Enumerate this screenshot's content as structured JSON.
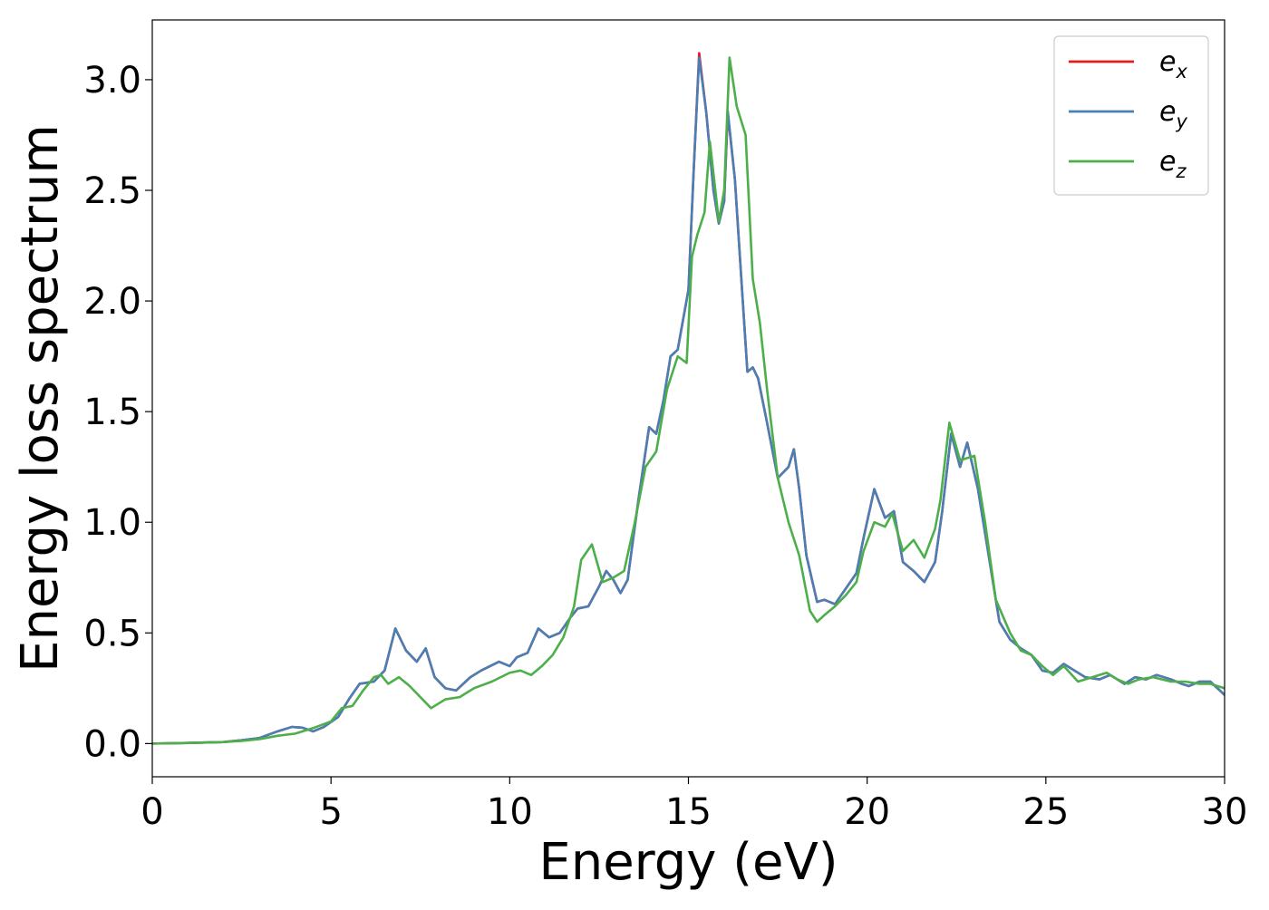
{
  "chart_data": {
    "type": "line",
    "title": "",
    "xlabel": "Energy (eV)",
    "ylabel": "Energy loss spectrum",
    "xlim": [
      0,
      30
    ],
    "ylim": [
      -0.15,
      3.27
    ],
    "xticks": [
      0,
      5,
      10,
      15,
      20,
      25,
      30
    ],
    "xtick_labels": [
      "0",
      "5",
      "10",
      "15",
      "20",
      "25",
      "30"
    ],
    "yticks": [
      0.0,
      0.5,
      1.0,
      1.5,
      2.0,
      2.5,
      3.0
    ],
    "ytick_labels": [
      "0.0",
      "0.5",
      "1.0",
      "1.5",
      "2.0",
      "2.5",
      "3.0"
    ],
    "grid": false,
    "legend_position": "top-right",
    "series": [
      {
        "name": "e_x",
        "legend_base": "e",
        "legend_sub": "x",
        "color": "#e41a1c",
        "points": [
          [
            0,
            0
          ],
          [
            1,
            0.003
          ],
          [
            2,
            0.007
          ],
          [
            2.5,
            0.015
          ],
          [
            3,
            0.025
          ],
          [
            3.5,
            0.055
          ],
          [
            3.9,
            0.075
          ],
          [
            4.2,
            0.072
          ],
          [
            4.5,
            0.055
          ],
          [
            4.8,
            0.075
          ],
          [
            5.2,
            0.12
          ],
          [
            5.5,
            0.2
          ],
          [
            5.8,
            0.27
          ],
          [
            6.2,
            0.28
          ],
          [
            6.5,
            0.33
          ],
          [
            6.8,
            0.52
          ],
          [
            7.1,
            0.42
          ],
          [
            7.4,
            0.37
          ],
          [
            7.65,
            0.43
          ],
          [
            7.9,
            0.3
          ],
          [
            8.2,
            0.25
          ],
          [
            8.5,
            0.24
          ],
          [
            8.9,
            0.3
          ],
          [
            9.2,
            0.33
          ],
          [
            9.7,
            0.37
          ],
          [
            10,
            0.35
          ],
          [
            10.2,
            0.39
          ],
          [
            10.5,
            0.41
          ],
          [
            10.8,
            0.52
          ],
          [
            11.1,
            0.48
          ],
          [
            11.4,
            0.5
          ],
          [
            11.7,
            0.57
          ],
          [
            11.9,
            0.61
          ],
          [
            12.2,
            0.62
          ],
          [
            12.5,
            0.71
          ],
          [
            12.7,
            0.78
          ],
          [
            12.9,
            0.74
          ],
          [
            13.1,
            0.68
          ],
          [
            13.3,
            0.74
          ],
          [
            13.6,
            1.1
          ],
          [
            13.9,
            1.43
          ],
          [
            14.1,
            1.4
          ],
          [
            14.3,
            1.55
          ],
          [
            14.5,
            1.75
          ],
          [
            14.7,
            1.78
          ],
          [
            15.0,
            2.05
          ],
          [
            15.15,
            2.6
          ],
          [
            15.3,
            3.12
          ],
          [
            15.5,
            2.85
          ],
          [
            15.7,
            2.5
          ],
          [
            15.85,
            2.35
          ],
          [
            16.0,
            2.45
          ],
          [
            16.1,
            2.85
          ],
          [
            16.3,
            2.55
          ],
          [
            16.5,
            2.05
          ],
          [
            16.65,
            1.68
          ],
          [
            16.8,
            1.7
          ],
          [
            16.95,
            1.65
          ],
          [
            17.2,
            1.45
          ],
          [
            17.5,
            1.2
          ],
          [
            17.8,
            1.25
          ],
          [
            17.95,
            1.33
          ],
          [
            18.1,
            1.15
          ],
          [
            18.3,
            0.85
          ],
          [
            18.6,
            0.64
          ],
          [
            18.8,
            0.65
          ],
          [
            19.1,
            0.63
          ],
          [
            19.4,
            0.7
          ],
          [
            19.7,
            0.77
          ],
          [
            19.9,
            0.93
          ],
          [
            20.2,
            1.15
          ],
          [
            20.5,
            1.02
          ],
          [
            20.75,
            1.05
          ],
          [
            21.0,
            0.82
          ],
          [
            21.3,
            0.78
          ],
          [
            21.6,
            0.73
          ],
          [
            21.9,
            0.82
          ],
          [
            22.1,
            1.05
          ],
          [
            22.35,
            1.4
          ],
          [
            22.6,
            1.25
          ],
          [
            22.8,
            1.36
          ],
          [
            23.1,
            1.15
          ],
          [
            23.4,
            0.85
          ],
          [
            23.7,
            0.55
          ],
          [
            24.0,
            0.47
          ],
          [
            24.3,
            0.43
          ],
          [
            24.6,
            0.4
          ],
          [
            24.9,
            0.33
          ],
          [
            25.2,
            0.32
          ],
          [
            25.5,
            0.36
          ],
          [
            25.8,
            0.33
          ],
          [
            26.1,
            0.3
          ],
          [
            26.5,
            0.29
          ],
          [
            26.8,
            0.31
          ],
          [
            27.2,
            0.27
          ],
          [
            27.5,
            0.3
          ],
          [
            27.8,
            0.29
          ],
          [
            28.1,
            0.31
          ],
          [
            28.5,
            0.29
          ],
          [
            28.8,
            0.27
          ],
          [
            29.0,
            0.26
          ],
          [
            29.3,
            0.28
          ],
          [
            29.6,
            0.28
          ],
          [
            30,
            0.22
          ]
        ]
      },
      {
        "name": "e_y",
        "legend_base": "e",
        "legend_sub": "y",
        "color": "#4a7fb5",
        "points": [
          [
            0,
            0
          ],
          [
            1,
            0.003
          ],
          [
            2,
            0.007
          ],
          [
            2.5,
            0.015
          ],
          [
            3,
            0.025
          ],
          [
            3.5,
            0.055
          ],
          [
            3.9,
            0.075
          ],
          [
            4.2,
            0.072
          ],
          [
            4.5,
            0.055
          ],
          [
            4.8,
            0.075
          ],
          [
            5.2,
            0.12
          ],
          [
            5.5,
            0.2
          ],
          [
            5.8,
            0.27
          ],
          [
            6.2,
            0.28
          ],
          [
            6.5,
            0.33
          ],
          [
            6.8,
            0.52
          ],
          [
            7.1,
            0.42
          ],
          [
            7.4,
            0.37
          ],
          [
            7.65,
            0.43
          ],
          [
            7.9,
            0.3
          ],
          [
            8.2,
            0.25
          ],
          [
            8.5,
            0.24
          ],
          [
            8.9,
            0.3
          ],
          [
            9.2,
            0.33
          ],
          [
            9.7,
            0.37
          ],
          [
            10,
            0.35
          ],
          [
            10.2,
            0.39
          ],
          [
            10.5,
            0.41
          ],
          [
            10.8,
            0.52
          ],
          [
            11.1,
            0.48
          ],
          [
            11.4,
            0.5
          ],
          [
            11.7,
            0.57
          ],
          [
            11.9,
            0.61
          ],
          [
            12.2,
            0.62
          ],
          [
            12.5,
            0.71
          ],
          [
            12.7,
            0.78
          ],
          [
            12.9,
            0.74
          ],
          [
            13.1,
            0.68
          ],
          [
            13.3,
            0.74
          ],
          [
            13.6,
            1.1
          ],
          [
            13.9,
            1.43
          ],
          [
            14.1,
            1.4
          ],
          [
            14.3,
            1.55
          ],
          [
            14.5,
            1.75
          ],
          [
            14.7,
            1.78
          ],
          [
            15.0,
            2.05
          ],
          [
            15.15,
            2.6
          ],
          [
            15.3,
            3.1
          ],
          [
            15.5,
            2.85
          ],
          [
            15.7,
            2.5
          ],
          [
            15.85,
            2.35
          ],
          [
            16.0,
            2.45
          ],
          [
            16.1,
            2.86
          ],
          [
            16.3,
            2.55
          ],
          [
            16.5,
            2.05
          ],
          [
            16.65,
            1.68
          ],
          [
            16.8,
            1.7
          ],
          [
            16.95,
            1.65
          ],
          [
            17.2,
            1.45
          ],
          [
            17.5,
            1.2
          ],
          [
            17.8,
            1.25
          ],
          [
            17.95,
            1.33
          ],
          [
            18.1,
            1.15
          ],
          [
            18.3,
            0.85
          ],
          [
            18.6,
            0.64
          ],
          [
            18.8,
            0.65
          ],
          [
            19.1,
            0.63
          ],
          [
            19.4,
            0.7
          ],
          [
            19.7,
            0.77
          ],
          [
            19.9,
            0.93
          ],
          [
            20.2,
            1.15
          ],
          [
            20.5,
            1.02
          ],
          [
            20.75,
            1.05
          ],
          [
            21.0,
            0.82
          ],
          [
            21.3,
            0.78
          ],
          [
            21.6,
            0.73
          ],
          [
            21.9,
            0.82
          ],
          [
            22.1,
            1.05
          ],
          [
            22.35,
            1.4
          ],
          [
            22.6,
            1.25
          ],
          [
            22.8,
            1.36
          ],
          [
            23.1,
            1.15
          ],
          [
            23.4,
            0.85
          ],
          [
            23.7,
            0.55
          ],
          [
            24.0,
            0.47
          ],
          [
            24.3,
            0.43
          ],
          [
            24.6,
            0.4
          ],
          [
            24.9,
            0.33
          ],
          [
            25.2,
            0.32
          ],
          [
            25.5,
            0.36
          ],
          [
            25.8,
            0.33
          ],
          [
            26.1,
            0.3
          ],
          [
            26.5,
            0.29
          ],
          [
            26.8,
            0.31
          ],
          [
            27.2,
            0.27
          ],
          [
            27.5,
            0.3
          ],
          [
            27.8,
            0.29
          ],
          [
            28.1,
            0.31
          ],
          [
            28.5,
            0.29
          ],
          [
            28.8,
            0.27
          ],
          [
            29.0,
            0.26
          ],
          [
            29.3,
            0.28
          ],
          [
            29.6,
            0.28
          ],
          [
            30,
            0.22
          ]
        ]
      },
      {
        "name": "e_z",
        "legend_base": "e",
        "legend_sub": "z",
        "color": "#4daf4a",
        "points": [
          [
            0,
            0
          ],
          [
            1,
            0.003
          ],
          [
            2,
            0.007
          ],
          [
            2.5,
            0.012
          ],
          [
            3,
            0.02
          ],
          [
            3.5,
            0.035
          ],
          [
            4,
            0.045
          ],
          [
            4.5,
            0.07
          ],
          [
            5,
            0.1
          ],
          [
            5.3,
            0.16
          ],
          [
            5.6,
            0.17
          ],
          [
            5.9,
            0.24
          ],
          [
            6.2,
            0.3
          ],
          [
            6.4,
            0.31
          ],
          [
            6.6,
            0.27
          ],
          [
            6.9,
            0.3
          ],
          [
            7.2,
            0.26
          ],
          [
            7.5,
            0.21
          ],
          [
            7.8,
            0.16
          ],
          [
            8.2,
            0.2
          ],
          [
            8.6,
            0.21
          ],
          [
            9,
            0.25
          ],
          [
            9.5,
            0.28
          ],
          [
            10,
            0.32
          ],
          [
            10.3,
            0.33
          ],
          [
            10.6,
            0.31
          ],
          [
            10.9,
            0.35
          ],
          [
            11.2,
            0.4
          ],
          [
            11.5,
            0.48
          ],
          [
            11.8,
            0.62
          ],
          [
            12.0,
            0.83
          ],
          [
            12.3,
            0.9
          ],
          [
            12.6,
            0.73
          ],
          [
            12.9,
            0.75
          ],
          [
            13.2,
            0.78
          ],
          [
            13.5,
            1.0
          ],
          [
            13.8,
            1.25
          ],
          [
            14.1,
            1.32
          ],
          [
            14.4,
            1.6
          ],
          [
            14.7,
            1.75
          ],
          [
            14.95,
            1.72
          ],
          [
            15.1,
            2.2
          ],
          [
            15.25,
            2.3
          ],
          [
            15.45,
            2.4
          ],
          [
            15.6,
            2.72
          ],
          [
            15.85,
            2.36
          ],
          [
            16.0,
            2.5
          ],
          [
            16.15,
            3.1
          ],
          [
            16.35,
            2.88
          ],
          [
            16.6,
            2.75
          ],
          [
            16.8,
            2.1
          ],
          [
            17.0,
            1.9
          ],
          [
            17.2,
            1.6
          ],
          [
            17.5,
            1.2
          ],
          [
            17.8,
            1.0
          ],
          [
            18.1,
            0.85
          ],
          [
            18.4,
            0.6
          ],
          [
            18.6,
            0.55
          ],
          [
            18.8,
            0.58
          ],
          [
            19.1,
            0.62
          ],
          [
            19.4,
            0.67
          ],
          [
            19.7,
            0.73
          ],
          [
            19.9,
            0.87
          ],
          [
            20.2,
            1.0
          ],
          [
            20.5,
            0.98
          ],
          [
            20.7,
            1.04
          ],
          [
            21.0,
            0.87
          ],
          [
            21.3,
            0.92
          ],
          [
            21.6,
            0.84
          ],
          [
            21.9,
            0.97
          ],
          [
            22.05,
            1.1
          ],
          [
            22.3,
            1.45
          ],
          [
            22.6,
            1.28
          ],
          [
            22.8,
            1.29
          ],
          [
            23.0,
            1.3
          ],
          [
            23.3,
            1.0
          ],
          [
            23.6,
            0.65
          ],
          [
            24.0,
            0.5
          ],
          [
            24.3,
            0.42
          ],
          [
            24.6,
            0.4
          ],
          [
            24.9,
            0.35
          ],
          [
            25.2,
            0.31
          ],
          [
            25.5,
            0.35
          ],
          [
            25.9,
            0.28
          ],
          [
            26.3,
            0.3
          ],
          [
            26.7,
            0.32
          ],
          [
            27.0,
            0.29
          ],
          [
            27.3,
            0.27
          ],
          [
            27.6,
            0.29
          ],
          [
            28.0,
            0.3
          ],
          [
            28.5,
            0.28
          ],
          [
            28.9,
            0.28
          ],
          [
            29.3,
            0.27
          ],
          [
            29.6,
            0.27
          ],
          [
            30,
            0.25
          ]
        ]
      }
    ]
  }
}
